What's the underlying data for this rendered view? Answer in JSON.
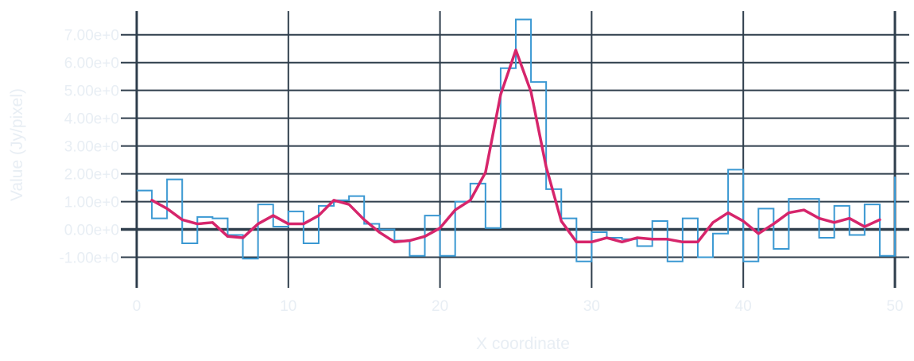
{
  "colors": {
    "background": "#ffffff",
    "grid": "#2f3e4c",
    "label_text": "#e8eef4",
    "step_series": "#3a98d2",
    "smooth_series": "#d6256b"
  },
  "chart_data": {
    "type": "line",
    "xlabel": "X coordinate",
    "ylabel": "Value (Jy/pixel)",
    "xlim": [
      0,
      50
    ],
    "ylim": [
      -2.1,
      7.85
    ],
    "x_ticks": [
      0,
      10,
      20,
      30,
      40,
      50
    ],
    "x_tick_labels": [
      "0",
      "10",
      "20",
      "30",
      "40",
      "50"
    ],
    "y_ticks": [
      -1,
      0,
      1,
      2,
      3,
      4,
      5,
      6,
      7
    ],
    "y_tick_labels": [
      "-1.00e+0",
      "0.00e+0",
      "1.00e+0",
      "2.00e+0",
      "3.00e+0",
      "4.00e+0",
      "5.00e+0",
      "6.00e+0",
      "7.00e+0"
    ],
    "grid": true,
    "series": [
      {
        "style": "step",
        "color": "#3a98d2",
        "x": [
          0,
          1,
          2,
          3,
          4,
          5,
          6,
          7,
          8,
          9,
          10,
          11,
          12,
          13,
          14,
          15,
          16,
          17,
          18,
          19,
          20,
          21,
          22,
          23,
          24,
          25,
          26,
          27,
          28,
          29,
          30,
          31,
          32,
          33,
          34,
          35,
          36,
          37,
          38,
          39,
          40,
          41,
          42,
          43,
          44,
          45,
          46,
          47,
          48,
          49,
          50
        ],
        "y": [
          1.4,
          0.4,
          1.8,
          -0.5,
          0.45,
          0.4,
          -0.2,
          -1.05,
          0.9,
          0.1,
          0.65,
          -0.5,
          0.85,
          1.05,
          1.2,
          0.2,
          0.0,
          -0.4,
          -0.95,
          0.5,
          -0.95,
          1.0,
          1.65,
          0.05,
          5.8,
          7.55,
          5.3,
          1.45,
          0.4,
          -1.15,
          -0.1,
          -0.3,
          -0.35,
          -0.6,
          0.3,
          -1.15,
          0.4,
          -1.0,
          -0.15,
          2.15,
          -1.15,
          0.75,
          -0.7,
          1.1,
          1.1,
          -0.3,
          0.85,
          -0.2,
          0.9,
          -0.95,
          1.9
        ]
      },
      {
        "style": "smooth",
        "color": "#d6256b",
        "x": [
          1,
          2,
          3,
          4,
          5,
          6,
          7,
          8,
          9,
          10,
          11,
          12,
          13,
          14,
          15,
          16,
          17,
          18,
          19,
          20,
          21,
          22,
          23,
          24,
          25,
          26,
          27,
          28,
          29,
          30,
          31,
          32,
          33,
          34,
          35,
          36,
          37,
          38,
          39,
          40,
          41,
          42,
          43,
          44,
          45,
          46,
          47,
          48,
          49
        ],
        "y": [
          1.05,
          0.75,
          0.35,
          0.2,
          0.25,
          -0.25,
          -0.3,
          0.2,
          0.5,
          0.2,
          0.2,
          0.5,
          1.05,
          0.9,
          0.35,
          -0.1,
          -0.45,
          -0.4,
          -0.25,
          0.05,
          0.7,
          1.05,
          2.05,
          4.85,
          6.45,
          4.95,
          2.25,
          0.3,
          -0.45,
          -0.45,
          -0.3,
          -0.45,
          -0.3,
          -0.35,
          -0.35,
          -0.45,
          -0.45,
          0.25,
          0.6,
          0.3,
          -0.15,
          0.2,
          0.6,
          0.7,
          0.4,
          0.25,
          0.4,
          0.1,
          0.35
        ]
      }
    ]
  }
}
